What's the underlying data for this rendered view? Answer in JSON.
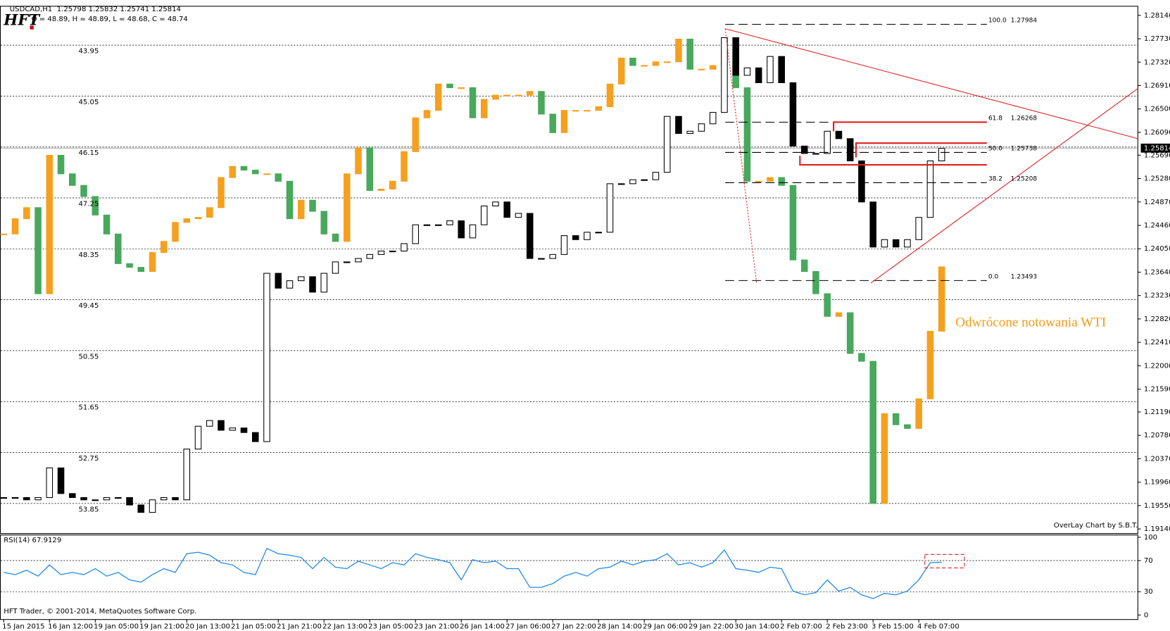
{
  "header": {
    "symbol": "USDCAD,H1",
    "ohlc": "1.25798 1.25832 1.25741 1.25814",
    "overlay": "O = 48.89, H = 48.89, L = 48.68, C = 48.74",
    "logo": "HFT"
  },
  "chart_data": [
    {
      "type": "candlestick",
      "categories": [
        "15 Jan 2015",
        null,
        null,
        null,
        "16 Jan 12:00",
        null,
        null,
        null,
        "19 Jan 05:00",
        null,
        null,
        null,
        "19 Jan 21:00",
        null,
        null,
        null,
        "20 Jan 13:00",
        null,
        null,
        null,
        "21 Jan 05:00",
        null,
        null,
        null,
        "21 Jan 21:00",
        null,
        null,
        null,
        "22 Jan 13:00",
        null,
        null,
        null,
        "23 Jan 05:00",
        null,
        null,
        null,
        "23 Jan 21:00",
        null,
        null,
        null,
        "26 Jan 14:00",
        null,
        null,
        null,
        "27 Jan 06:00",
        null,
        null,
        null,
        "27 Jan 22:00",
        null,
        null,
        null,
        "28 Jan 14:00",
        null,
        null,
        null,
        "29 Jan 06:00",
        null,
        null,
        null,
        "29 Jan 22:00",
        null,
        null,
        null,
        "30 Jan 14:00",
        null,
        null,
        null,
        "2 Feb 07:00",
        null,
        null,
        null,
        "2 Feb 23:00",
        null,
        null,
        null,
        "3 Feb 15:00",
        null,
        null,
        null,
        "4 Feb 07:00",
        null,
        null
      ],
      "series": [
        {
          "axis": "y2",
          "up_color": "#f5a01e",
          "down_color": "#48a85c",
          "values": [
            48.03,
            47.7,
            47.46,
            49.32,
            46.33,
            46.73,
            46.98,
            47.22,
            47.62,
            48.03,
            48.67,
            48.75,
            48.84,
            48.43,
            48.19,
            47.78,
            47.7,
            47.67,
            47.46,
            46.81,
            46.57,
            46.65,
            46.73,
            46.73,
            46.89,
            47.7,
            47.3,
            47.54,
            48.03,
            48.19,
            46.73,
            46.17,
            47.09,
            47.06,
            46.89,
            46.25,
            45.52,
            45.36,
            44.79,
            44.87,
            44.87,
            45.52,
            45.12,
            45.03,
            45.03,
            45.03,
            44.95,
            45.44,
            45.84,
            45.36,
            45.36,
            45.36,
            45.28,
            44.79,
            44.23,
            44.39,
            44.39,
            44.31,
            44.31,
            43.82,
            44.47,
            44.47,
            44.39,
            44.06,
            44.87,
            46.89,
            46.89,
            46.81,
            46.98,
            48.59,
            48.84,
            49.32,
            49.81,
            49.73,
            50.61,
            50.78,
            53.85,
            51.91,
            52.15,
            52.23,
            51.59,
            50.13,
            48.74
          ]
        },
        {
          "up_color": "#ffffff",
          "down_color": "#000000",
          "edge_color": "#000000",
          "values": [
            1.1969,
            1.1969,
            1.1965,
            1.1969,
            1.2021,
            1.1976,
            1.1969,
            1.1965,
            1.1965,
            1.1969,
            1.1969,
            1.1956,
            1.1943,
            1.1965,
            1.1969,
            1.1965,
            1.2054,
            1.2094,
            1.2104,
            1.2087,
            1.2091,
            1.2083,
            1.2067,
            1.2362,
            1.2336,
            1.2349,
            1.2356,
            1.2329,
            1.2362,
            1.2382,
            1.2382,
            1.2388,
            1.2395,
            1.2401,
            1.2401,
            1.2414,
            1.2447,
            1.2447,
            1.2447,
            1.2454,
            1.2424,
            1.2447,
            1.248,
            1.2487,
            1.246,
            1.2467,
            1.2388,
            1.2388,
            1.2395,
            1.2428,
            1.2421,
            1.2434,
            1.2434,
            1.2519,
            1.2519,
            1.2526,
            1.2526,
            1.2539,
            1.2637,
            1.2607,
            1.2611,
            1.2624,
            1.2644,
            1.2775,
            1.2709,
            1.2722,
            1.2696,
            1.2742,
            1.2696,
            1.2585,
            1.2572,
            1.2572,
            1.2611,
            1.2598,
            1.2559,
            1.2487,
            1.2408,
            1.2421,
            1.2408,
            1.2421,
            1.246,
            1.2559,
            1.2581
          ]
        }
      ],
      "ylim": [
        1.1906,
        1.283
      ],
      "yticks": [
        {
          "value": 1.2814,
          "label": "1.28140"
        },
        {
          "value": 1.2773,
          "label": "1.27730"
        },
        {
          "value": 1.2732,
          "label": "1.27320"
        },
        {
          "value": 1.2691,
          "label": "1.26910"
        },
        {
          "value": 1.265,
          "label": "1.26500"
        },
        {
          "value": 1.2609,
          "label": "1.26090"
        },
        {
          "value": 1.2569,
          "label": "1.25690"
        },
        {
          "value": 1.2528,
          "label": "1.25280"
        },
        {
          "value": 1.2487,
          "label": "1.24870"
        },
        {
          "value": 1.2446,
          "label": "1.24460"
        },
        {
          "value": 1.2405,
          "label": "1.24050"
        },
        {
          "value": 1.2364,
          "label": "1.23640"
        },
        {
          "value": 1.2323,
          "label": "1.23230"
        },
        {
          "value": 1.2282,
          "label": "1.22820"
        },
        {
          "value": 1.2241,
          "label": "1.22410"
        },
        {
          "value": 1.22,
          "label": "1.22000"
        },
        {
          "value": 1.2159,
          "label": "1.21590"
        },
        {
          "value": 1.2119,
          "label": "1.21190"
        },
        {
          "value": 1.2078,
          "label": "1.20780"
        },
        {
          "value": 1.2037,
          "label": "1.20370"
        },
        {
          "value": 1.1996,
          "label": "1.19960"
        },
        {
          "value": 1.1955,
          "label": "1.19550"
        },
        {
          "value": 1.1914,
          "label": "1.19140"
        }
      ],
      "y2lim": [
        54.5,
        43.11
      ],
      "y2ticks": [
        43.95,
        45.05,
        46.15,
        47.25,
        48.35,
        49.45,
        50.55,
        51.65,
        52.75,
        53.85
      ],
      "grid": true,
      "current_price": 1.25814,
      "fibonacci": [
        {
          "ratio": "100.0",
          "price": 1.27984
        },
        {
          "ratio": "61.8",
          "price": 1.26268
        },
        {
          "ratio": "50.0",
          "price": 1.25738
        },
        {
          "ratio": "38.2",
          "price": 1.25208
        },
        {
          "ratio": "0.0",
          "price": 1.23493
        }
      ],
      "annotation": "Odwrócone notowania WTI",
      "credit": "OverLay Chart by S.B.T."
    },
    {
      "type": "line",
      "title": "RSI(14) 67.9129",
      "color": "#1e88e5",
      "ylim": [
        0,
        100
      ],
      "yticks": [
        0,
        30,
        70,
        100
      ],
      "values": [
        54.8,
        51.9,
        57.7,
        50.0,
        64.4,
        51.9,
        54.8,
        51.9,
        59.6,
        50.0,
        54.8,
        45.2,
        42.3,
        51.9,
        59.6,
        54.8,
        78.8,
        80.8,
        76.9,
        67.3,
        64.4,
        54.8,
        51.9,
        85.6,
        78.8,
        76.9,
        74.0,
        59.6,
        74.0,
        61.5,
        59.6,
        69.2,
        64.4,
        59.6,
        67.3,
        64.4,
        78.8,
        74.0,
        71.2,
        67.3,
        45.2,
        71.2,
        67.3,
        69.2,
        59.6,
        59.6,
        35.6,
        35.6,
        40.4,
        50.0,
        54.8,
        50.0,
        59.6,
        61.5,
        69.2,
        64.4,
        69.2,
        71.2,
        78.8,
        64.4,
        67.3,
        61.5,
        67.3,
        83.7,
        59.6,
        57.7,
        54.8,
        61.5,
        59.6,
        30.8,
        26.0,
        28.8,
        45.2,
        30.8,
        35.6,
        26.0,
        21.2,
        27.9,
        26.0,
        30.8,
        45.2,
        67.3,
        67.91
      ],
      "footer": "HFT Trader, © 2001-2014, MetaQuotes Software Corp."
    }
  ]
}
